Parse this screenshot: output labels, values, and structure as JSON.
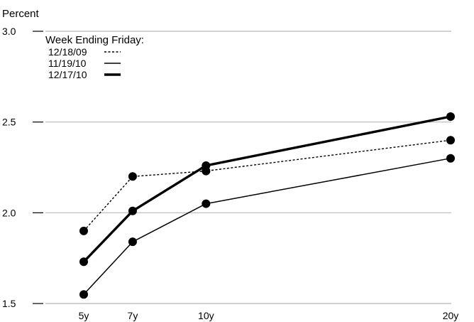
{
  "chart_data": {
    "type": "line",
    "ylabel": "Percent",
    "xlabel": "",
    "title": "",
    "ylim": [
      1.5,
      3.0
    ],
    "y_ticks": [
      1.5,
      2.0,
      2.5,
      3.0
    ],
    "y_tick_labels": [
      "1.5",
      "2.0",
      "2.5",
      "3.0"
    ],
    "x": [
      5,
      7,
      10,
      20
    ],
    "x_tick_labels": [
      "5y",
      "7y",
      "10y",
      "20y"
    ],
    "grid": true,
    "legend": {
      "title": "Week Ending Friday:",
      "placement": "top-left"
    },
    "series": [
      {
        "name": "12/18/09",
        "style": "dotted",
        "color": "#000000",
        "values": [
          1.9,
          2.2,
          2.23,
          2.4
        ]
      },
      {
        "name": "11/19/10",
        "style": "thin",
        "color": "#000000",
        "values": [
          1.55,
          1.84,
          2.05,
          2.3
        ]
      },
      {
        "name": "12/17/10",
        "style": "thick",
        "color": "#000000",
        "values": [
          1.73,
          2.01,
          2.26,
          2.53
        ]
      }
    ]
  }
}
